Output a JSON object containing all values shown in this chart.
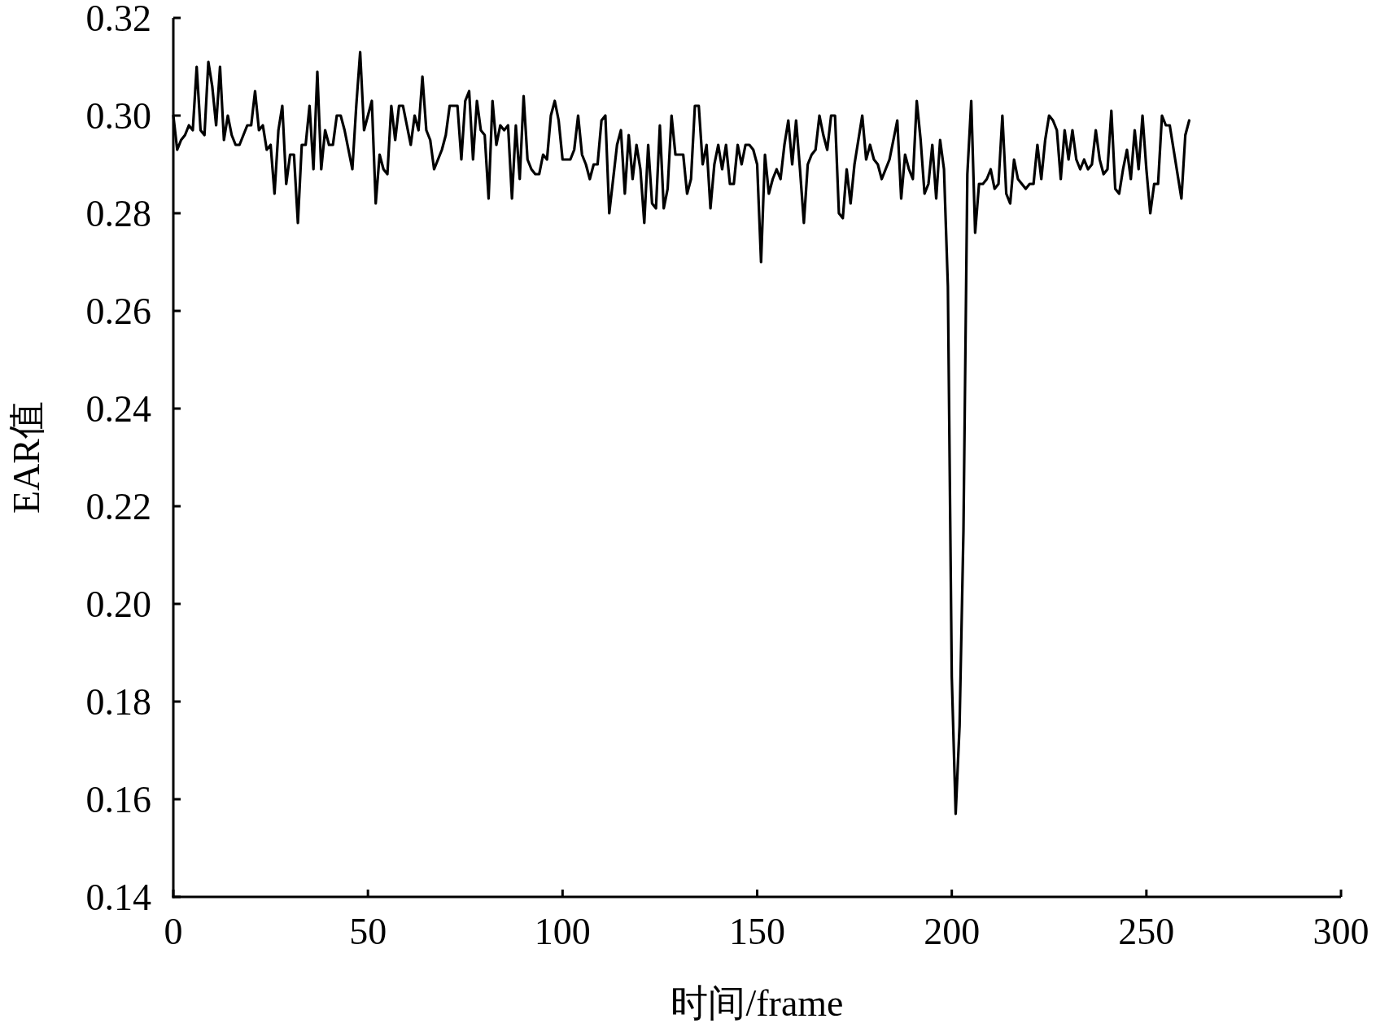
{
  "chart_data": {
    "type": "line",
    "xlabel": "时间/frame",
    "ylabel": "EAR值",
    "xlim": [
      0,
      300
    ],
    "xticks": [
      0,
      50,
      100,
      150,
      200,
      250,
      300
    ],
    "ylim": [
      0.14,
      0.32
    ],
    "yticks": [
      {
        "value": 0.14,
        "label": "0.14"
      },
      {
        "value": 0.16,
        "label": "0.16"
      },
      {
        "value": 0.18,
        "label": "0.18"
      },
      {
        "value": 0.2,
        "label": "0.20"
      },
      {
        "value": 0.22,
        "label": "0.22"
      },
      {
        "value": 0.24,
        "label": "0.24"
      },
      {
        "value": 0.26,
        "label": "0.26"
      },
      {
        "value": 0.28,
        "label": "0.28"
      },
      {
        "value": 0.3,
        "label": "0.30"
      },
      {
        "value": 0.32,
        "label": "0.32"
      }
    ],
    "grid": false,
    "marker": "none",
    "line_style": "solid",
    "series": [
      {
        "color": "#000000",
        "x": [
          0,
          1,
          2,
          3,
          4,
          5,
          6,
          7,
          8,
          9,
          10,
          11,
          12,
          13,
          14,
          15,
          16,
          17,
          18,
          19,
          20,
          21,
          22,
          23,
          24,
          25,
          26,
          27,
          28,
          29,
          30,
          31,
          32,
          33,
          34,
          35,
          36,
          37,
          38,
          39,
          40,
          41,
          42,
          43,
          44,
          45,
          46,
          47,
          48,
          49,
          50,
          51,
          52,
          53,
          54,
          55,
          56,
          57,
          58,
          59,
          60,
          61,
          62,
          63,
          64,
          65,
          66,
          67,
          68,
          69,
          70,
          71,
          72,
          73,
          74,
          75,
          76,
          77,
          78,
          79,
          80,
          81,
          82,
          83,
          84,
          85,
          86,
          87,
          88,
          89,
          90,
          91,
          92,
          93,
          94,
          95,
          96,
          97,
          98,
          99,
          100,
          101,
          102,
          103,
          104,
          105,
          106,
          107,
          108,
          109,
          110,
          111,
          112,
          113,
          114,
          115,
          116,
          117,
          118,
          119,
          120,
          121,
          122,
          123,
          124,
          125,
          126,
          127,
          128,
          129,
          130,
          131,
          132,
          133,
          134,
          135,
          136,
          137,
          138,
          139,
          140,
          141,
          142,
          143,
          144,
          145,
          146,
          147,
          148,
          149,
          150,
          151,
          152,
          153,
          154,
          155,
          156,
          157,
          158,
          159,
          160,
          161,
          162,
          163,
          164,
          165,
          166,
          167,
          168,
          169,
          170,
          171,
          172,
          173,
          174,
          175,
          176,
          177,
          178,
          179,
          180,
          181,
          182,
          183,
          184,
          185,
          186,
          187,
          188,
          189,
          190,
          191,
          192,
          193,
          194,
          195,
          196,
          197,
          198,
          199,
          200,
          201,
          202,
          203,
          204,
          205,
          206,
          207,
          208,
          209,
          210,
          211,
          212,
          213,
          214,
          215,
          216,
          217,
          218,
          219,
          220,
          221,
          222,
          223,
          224,
          225,
          226,
          227,
          228,
          229,
          230,
          231,
          232,
          233,
          234,
          235,
          236,
          237,
          238,
          239,
          240,
          241,
          242,
          243,
          244,
          245,
          246,
          247,
          248,
          249,
          250,
          251,
          252,
          253,
          254,
          255,
          256,
          257,
          258,
          259,
          260,
          261
        ],
        "values": [
          0.3,
          0.293,
          0.295,
          0.296,
          0.298,
          0.297,
          0.31,
          0.297,
          0.296,
          0.311,
          0.306,
          0.298,
          0.31,
          0.295,
          0.3,
          0.296,
          0.294,
          0.294,
          0.296,
          0.298,
          0.298,
          0.305,
          0.297,
          0.298,
          0.293,
          0.294,
          0.284,
          0.297,
          0.302,
          0.286,
          0.292,
          0.292,
          0.278,
          0.294,
          0.294,
          0.302,
          0.289,
          0.309,
          0.289,
          0.297,
          0.294,
          0.294,
          0.3,
          0.3,
          0.297,
          0.293,
          0.289,
          0.302,
          0.313,
          0.297,
          0.3,
          0.303,
          0.282,
          0.292,
          0.289,
          0.288,
          0.302,
          0.295,
          0.302,
          0.302,
          0.298,
          0.294,
          0.3,
          0.297,
          0.308,
          0.297,
          0.295,
          0.289,
          0.291,
          0.293,
          0.296,
          0.302,
          0.302,
          0.302,
          0.291,
          0.303,
          0.305,
          0.291,
          0.303,
          0.297,
          0.296,
          0.283,
          0.303,
          0.294,
          0.298,
          0.297,
          0.298,
          0.283,
          0.298,
          0.287,
          0.304,
          0.291,
          0.289,
          0.288,
          0.288,
          0.292,
          0.291,
          0.3,
          0.303,
          0.299,
          0.291,
          0.291,
          0.291,
          0.293,
          0.3,
          0.292,
          0.29,
          0.287,
          0.29,
          0.29,
          0.299,
          0.3,
          0.28,
          0.287,
          0.294,
          0.297,
          0.284,
          0.296,
          0.287,
          0.294,
          0.289,
          0.278,
          0.294,
          0.282,
          0.281,
          0.298,
          0.281,
          0.285,
          0.3,
          0.292,
          0.292,
          0.292,
          0.284,
          0.287,
          0.302,
          0.302,
          0.29,
          0.294,
          0.281,
          0.29,
          0.294,
          0.289,
          0.294,
          0.286,
          0.286,
          0.294,
          0.29,
          0.294,
          0.294,
          0.293,
          0.29,
          0.27,
          0.292,
          0.284,
          0.287,
          0.289,
          0.287,
          0.294,
          0.299,
          0.29,
          0.299,
          0.289,
          0.278,
          0.29,
          0.292,
          0.293,
          0.3,
          0.296,
          0.293,
          0.3,
          0.3,
          0.28,
          0.279,
          0.289,
          0.282,
          0.29,
          0.295,
          0.3,
          0.291,
          0.294,
          0.291,
          0.29,
          0.287,
          0.289,
          0.291,
          0.295,
          0.299,
          0.283,
          0.292,
          0.289,
          0.287,
          0.303,
          0.295,
          0.284,
          0.286,
          0.294,
          0.283,
          0.295,
          0.289,
          0.265,
          0.185,
          0.157,
          0.175,
          0.215,
          0.288,
          0.303,
          0.276,
          0.286,
          0.286,
          0.287,
          0.289,
          0.285,
          0.286,
          0.3,
          0.284,
          0.282,
          0.291,
          0.287,
          0.286,
          0.285,
          0.286,
          0.286,
          0.294,
          0.287,
          0.295,
          0.3,
          0.299,
          0.297,
          0.287,
          0.297,
          0.291,
          0.297,
          0.291,
          0.289,
          0.291,
          0.289,
          0.29,
          0.297,
          0.291,
          0.288,
          0.289,
          0.301,
          0.285,
          0.284,
          0.289,
          0.293,
          0.287,
          0.297,
          0.289,
          0.3,
          0.289,
          0.28,
          0.286,
          0.286,
          0.3,
          0.298,
          0.298,
          0.293,
          0.288,
          0.283,
          0.296,
          0.299
        ]
      }
    ]
  }
}
